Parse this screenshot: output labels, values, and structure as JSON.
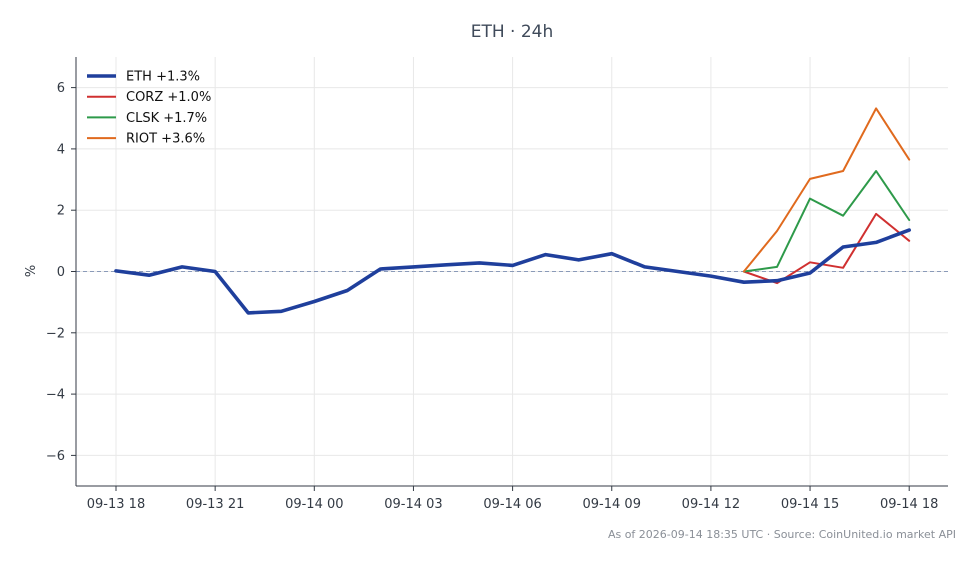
{
  "chart_data": {
    "type": "line",
    "title": "ETH · 24h",
    "xlabel": "",
    "ylabel": "%",
    "ylim": [
      -7,
      7
    ],
    "yticks": [
      -6,
      -4,
      -2,
      0,
      2,
      4,
      6
    ],
    "ytick_labels": [
      "−6",
      "−4",
      "−2",
      "0",
      "2",
      "4",
      "6"
    ],
    "xticks": [
      "09-13 18",
      "09-13 21",
      "09-14 00",
      "09-14 03",
      "09-14 06",
      "09-14 09",
      "09-14 12",
      "09-14 15",
      "09-14 18"
    ],
    "x_hours": [
      0,
      1,
      2,
      3,
      4,
      5,
      6,
      7,
      8,
      9,
      10,
      11,
      12,
      13,
      14,
      15,
      16,
      17,
      18,
      19,
      20,
      21,
      22,
      23,
      24
    ],
    "grid": true,
    "zero_line": true,
    "legend_position": "top-left",
    "series": [
      {
        "name": "ETH +1.3%",
        "color": "#1f3f9c",
        "values": [
          0.02,
          -0.12,
          0.15,
          0.0,
          -1.35,
          -1.3,
          -0.98,
          -0.62,
          0.08,
          0.15,
          0.22,
          0.28,
          0.2,
          0.55,
          0.38,
          0.58,
          0.15,
          0.0,
          -0.15,
          -0.35,
          -0.3,
          -0.05,
          0.8,
          0.95,
          1.35
        ]
      },
      {
        "name": "CORZ +1.0%",
        "color": "#d03030",
        "values": [
          null,
          null,
          null,
          null,
          null,
          null,
          null,
          null,
          null,
          null,
          null,
          null,
          null,
          null,
          null,
          null,
          null,
          null,
          null,
          0.0,
          -0.38,
          0.3,
          0.12,
          1.88,
          1.0
        ]
      },
      {
        "name": "CLSK +1.7%",
        "color": "#2e9a4a",
        "values": [
          null,
          null,
          null,
          null,
          null,
          null,
          null,
          null,
          null,
          null,
          null,
          null,
          null,
          null,
          null,
          null,
          null,
          null,
          null,
          0.0,
          0.15,
          2.38,
          1.82,
          3.28,
          1.68
        ]
      },
      {
        "name": "RIOT +3.6%",
        "color": "#e06a1e",
        "values": [
          null,
          null,
          null,
          null,
          null,
          null,
          null,
          null,
          null,
          null,
          null,
          null,
          null,
          null,
          null,
          null,
          null,
          null,
          null,
          0.0,
          1.32,
          3.02,
          3.28,
          5.32,
          3.65
        ]
      }
    ],
    "footnote": "As of 2026-09-14 18:35 UTC · Source: CoinUnited.io market API"
  }
}
